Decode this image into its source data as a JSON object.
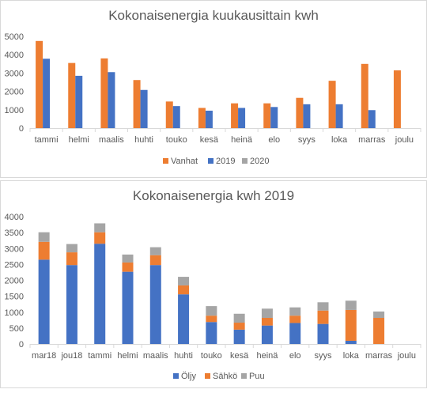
{
  "chart_data": [
    {
      "type": "bar",
      "title": "Kokonaisenergia kuukausittain kwh",
      "categories": [
        "tammi",
        "helmi",
        "maalis",
        "huhti",
        "touko",
        "kesä",
        "heinä",
        "elo",
        "syys",
        "loka",
        "marras",
        "joulu"
      ],
      "series": [
        {
          "name": "Vanhat",
          "color": "#ED7D31",
          "values": [
            4750,
            3550,
            3800,
            2620,
            1450,
            1100,
            1350,
            1350,
            1650,
            2580,
            3500,
            3150
          ]
        },
        {
          "name": "2019",
          "color": "#4472C4",
          "values": [
            3780,
            2850,
            3050,
            2080,
            1200,
            950,
            1100,
            1150,
            1300,
            1300,
            980,
            null
          ]
        },
        {
          "name": "2020",
          "color": "#A5A5A5",
          "values": [
            null,
            null,
            null,
            null,
            null,
            null,
            null,
            null,
            null,
            null,
            null,
            null
          ]
        }
      ],
      "ylim": [
        0,
        5000
      ],
      "yticks": [
        0,
        1000,
        2000,
        3000,
        4000,
        5000
      ],
      "legend": "bottom",
      "grid": false
    },
    {
      "type": "bar",
      "stacked": true,
      "title": "Kokonaisenergia kwh 2019",
      "categories": [
        "mar18",
        "jou18",
        "tammi",
        "helmi",
        "maalis",
        "huhti",
        "touko",
        "kesä",
        "heinä",
        "elo",
        "syys",
        "loka",
        "marras",
        "joulu"
      ],
      "series": [
        {
          "name": "Öljy",
          "color": "#4472C4",
          "values": [
            2650,
            2480,
            3150,
            2270,
            2480,
            1560,
            690,
            450,
            580,
            660,
            630,
            100,
            0,
            0
          ]
        },
        {
          "name": "Sähkö",
          "color": "#ED7D31",
          "values": [
            560,
            400,
            360,
            290,
            310,
            280,
            200,
            220,
            240,
            230,
            420,
            970,
            820,
            0
          ]
        },
        {
          "name": "Puu",
          "color": "#A5A5A5",
          "values": [
            300,
            260,
            280,
            250,
            250,
            270,
            300,
            280,
            290,
            260,
            260,
            290,
            200,
            0
          ]
        }
      ],
      "ylim": [
        0,
        4000
      ],
      "yticks": [
        0,
        500,
        1000,
        1500,
        2000,
        2500,
        3000,
        3500,
        4000
      ],
      "legend": "bottom",
      "grid": false
    }
  ]
}
